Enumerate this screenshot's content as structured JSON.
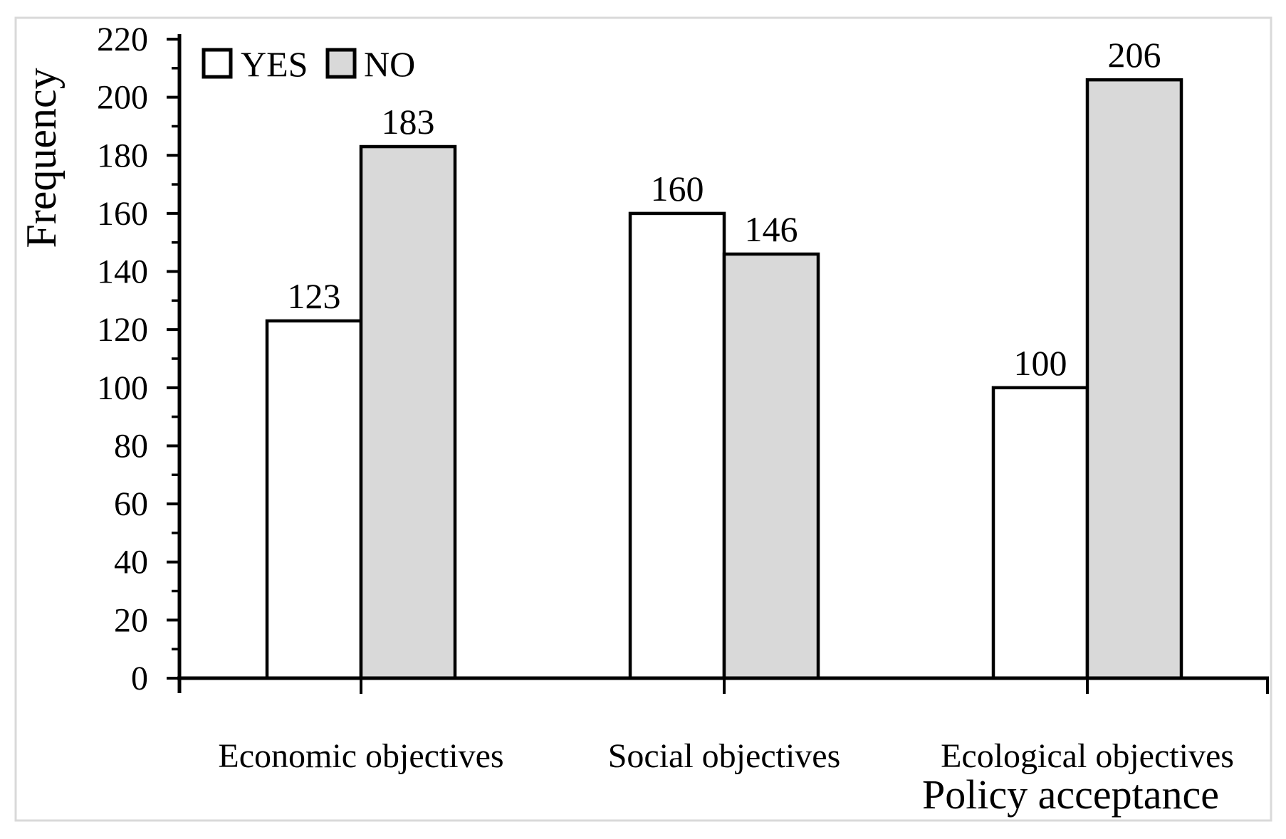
{
  "figure": {
    "background": "#ffffff",
    "frame_color": "#d9d9d9"
  },
  "chart_data": {
    "type": "bar",
    "title": "",
    "categories": [
      "Economic objectives",
      "Social objectives",
      "Ecological objectives"
    ],
    "series": [
      {
        "name": "YES",
        "values": [
          123,
          160,
          100
        ],
        "fill": "#ffffff"
      },
      {
        "name": "NO",
        "values": [
          183,
          146,
          206
        ],
        "fill": "#d9d9d9"
      }
    ],
    "bar_border_color": "#000000",
    "axis_color": "#000000",
    "data_labels": [
      "123",
      "183",
      "160",
      "146",
      "100",
      "206"
    ],
    "xlabel": "Policy acceptance",
    "ylabel": "Frequency",
    "ylim": [
      0,
      220
    ],
    "y_major_step": 20,
    "y_minor_step": 10,
    "y_tick_labels": [
      "0",
      "20",
      "40",
      "60",
      "80",
      "100",
      "120",
      "140",
      "160",
      "180",
      "200",
      "220"
    ],
    "legend": {
      "position": "top-left",
      "entries": [
        "YES",
        "NO"
      ]
    },
    "grid": false
  }
}
